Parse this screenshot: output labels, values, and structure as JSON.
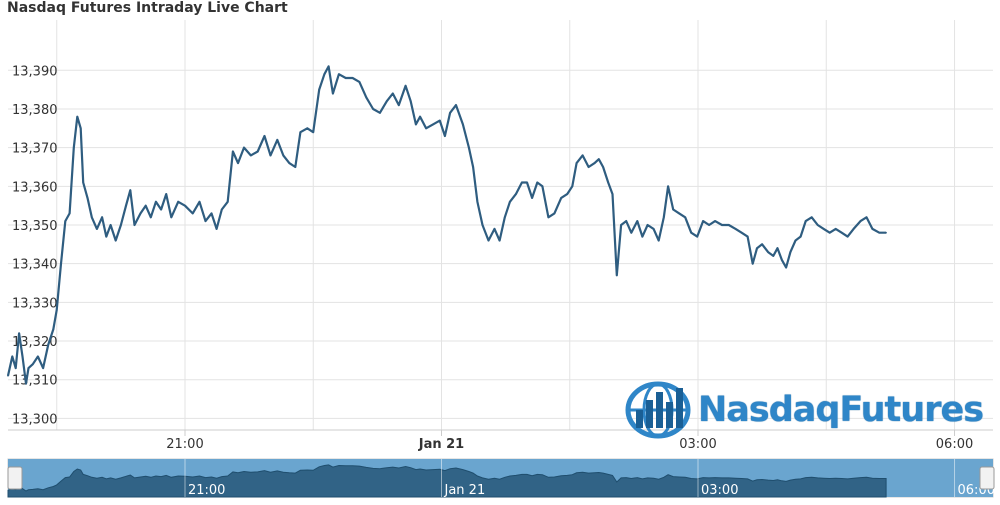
{
  "title": "Nasdaq Futures Intraday Live Chart",
  "brand": {
    "logo_text": "NasdaqFutures"
  },
  "colors": {
    "line": "#2f5d80",
    "grid": "#e3e3e3",
    "navigator_fill": "#3d7da8",
    "navigator_line": "#1f4e6e",
    "logo": "#2f86c8"
  },
  "chart_data": {
    "type": "line",
    "title": "Nasdaq Futures Intraday Live Chart",
    "xlabel": "",
    "ylabel": "",
    "ylim": [
      13297,
      13403
    ],
    "yticks": [
      13390,
      13380,
      13370,
      13360,
      13350,
      13340,
      13330,
      13320,
      13310,
      13300
    ],
    "ytick_labels": [
      "13,390",
      "13,380",
      "13,370",
      "13,360",
      "13,350",
      "13,340",
      "13,330",
      "13,320",
      "13,310",
      "13,300"
    ],
    "xticks": [
      {
        "label": "21:00",
        "hours": 21.0,
        "bold": false
      },
      {
        "label": "Jan 21",
        "hours": 24.0,
        "bold": true
      },
      {
        "label": "03:00",
        "hours": 27.0,
        "bold": false
      },
      {
        "label": "06:00",
        "hours": 30.0,
        "bold": false
      }
    ],
    "grid": true,
    "series": [
      {
        "points": [
          [
            18.93,
            13311
          ],
          [
            18.98,
            13316
          ],
          [
            19.02,
            13313
          ],
          [
            19.06,
            13322
          ],
          [
            19.1,
            13316
          ],
          [
            19.14,
            13309
          ],
          [
            19.17,
            13313
          ],
          [
            19.22,
            13314
          ],
          [
            19.28,
            13316
          ],
          [
            19.34,
            13313
          ],
          [
            19.4,
            13319
          ],
          [
            19.46,
            13323
          ],
          [
            19.5,
            13328
          ],
          [
            19.55,
            13340
          ],
          [
            19.6,
            13351
          ],
          [
            19.65,
            13353
          ],
          [
            19.7,
            13370
          ],
          [
            19.74,
            13378
          ],
          [
            19.78,
            13375
          ],
          [
            19.81,
            13361
          ],
          [
            19.86,
            13357
          ],
          [
            19.91,
            13352
          ],
          [
            19.97,
            13349
          ],
          [
            20.03,
            13352
          ],
          [
            20.08,
            13347
          ],
          [
            20.13,
            13350
          ],
          [
            20.19,
            13346
          ],
          [
            20.25,
            13350
          ],
          [
            20.31,
            13355
          ],
          [
            20.36,
            13359
          ],
          [
            20.41,
            13350
          ],
          [
            20.48,
            13353
          ],
          [
            20.54,
            13355
          ],
          [
            20.6,
            13352
          ],
          [
            20.66,
            13356
          ],
          [
            20.72,
            13354
          ],
          [
            20.78,
            13358
          ],
          [
            20.84,
            13352
          ],
          [
            20.92,
            13356
          ],
          [
            21.0,
            13355
          ],
          [
            21.09,
            13353
          ],
          [
            21.17,
            13356
          ],
          [
            21.24,
            13351
          ],
          [
            21.31,
            13353
          ],
          [
            21.37,
            13349
          ],
          [
            21.43,
            13354
          ],
          [
            21.5,
            13356
          ],
          [
            21.56,
            13369
          ],
          [
            21.62,
            13366
          ],
          [
            21.69,
            13370
          ],
          [
            21.77,
            13368
          ],
          [
            21.85,
            13369
          ],
          [
            21.93,
            13373
          ],
          [
            22.0,
            13368
          ],
          [
            22.08,
            13372
          ],
          [
            22.15,
            13368
          ],
          [
            22.22,
            13366
          ],
          [
            22.29,
            13365
          ],
          [
            22.35,
            13374
          ],
          [
            22.43,
            13375
          ],
          [
            22.5,
            13374
          ],
          [
            22.57,
            13385
          ],
          [
            22.63,
            13389
          ],
          [
            22.68,
            13391
          ],
          [
            22.73,
            13384
          ],
          [
            22.8,
            13389
          ],
          [
            22.88,
            13388
          ],
          [
            22.96,
            13388
          ],
          [
            23.04,
            13387
          ],
          [
            23.12,
            13383
          ],
          [
            23.2,
            13380
          ],
          [
            23.28,
            13379
          ],
          [
            23.36,
            13382
          ],
          [
            23.43,
            13384
          ],
          [
            23.5,
            13381
          ],
          [
            23.58,
            13386
          ],
          [
            23.64,
            13382
          ],
          [
            23.7,
            13376
          ],
          [
            23.75,
            13378
          ],
          [
            23.82,
            13375
          ],
          [
            23.9,
            13376
          ],
          [
            23.98,
            13377
          ],
          [
            24.04,
            13373
          ],
          [
            24.1,
            13379
          ],
          [
            24.17,
            13381
          ],
          [
            24.25,
            13376
          ],
          [
            24.32,
            13370
          ],
          [
            24.37,
            13365
          ],
          [
            24.42,
            13356
          ],
          [
            24.48,
            13350
          ],
          [
            24.55,
            13346
          ],
          [
            24.62,
            13349
          ],
          [
            24.68,
            13346
          ],
          [
            24.74,
            13352
          ],
          [
            24.8,
            13356
          ],
          [
            24.87,
            13358
          ],
          [
            24.94,
            13361
          ],
          [
            25.0,
            13361
          ],
          [
            25.06,
            13357
          ],
          [
            25.12,
            13361
          ],
          [
            25.18,
            13360
          ],
          [
            25.25,
            13352
          ],
          [
            25.32,
            13353
          ],
          [
            25.4,
            13357
          ],
          [
            25.47,
            13358
          ],
          [
            25.53,
            13360
          ],
          [
            25.58,
            13366
          ],
          [
            25.65,
            13368
          ],
          [
            25.72,
            13365
          ],
          [
            25.79,
            13366
          ],
          [
            25.84,
            13367
          ],
          [
            25.89,
            13365
          ],
          [
            25.95,
            13361
          ],
          [
            26.0,
            13358
          ],
          [
            26.05,
            13337
          ],
          [
            26.1,
            13350
          ],
          [
            26.16,
            13351
          ],
          [
            26.22,
            13348
          ],
          [
            26.29,
            13351
          ],
          [
            26.35,
            13347
          ],
          [
            26.41,
            13350
          ],
          [
            26.48,
            13349
          ],
          [
            26.54,
            13346
          ],
          [
            26.6,
            13352
          ],
          [
            26.65,
            13360
          ],
          [
            26.71,
            13354
          ],
          [
            26.78,
            13353
          ],
          [
            26.85,
            13352
          ],
          [
            26.92,
            13348
          ],
          [
            26.99,
            13347
          ],
          [
            27.06,
            13351
          ],
          [
            27.13,
            13350
          ],
          [
            27.2,
            13351
          ],
          [
            27.28,
            13350
          ],
          [
            27.36,
            13350
          ],
          [
            27.44,
            13349
          ],
          [
            27.51,
            13348
          ],
          [
            27.58,
            13347
          ],
          [
            27.64,
            13340
          ],
          [
            27.69,
            13344
          ],
          [
            27.75,
            13345
          ],
          [
            27.82,
            13343
          ],
          [
            27.88,
            13342
          ],
          [
            27.93,
            13344
          ],
          [
            27.98,
            13341
          ],
          [
            28.03,
            13339
          ],
          [
            28.08,
            13343
          ],
          [
            28.14,
            13346
          ],
          [
            28.2,
            13347
          ],
          [
            28.26,
            13351
          ],
          [
            28.33,
            13352
          ],
          [
            28.4,
            13350
          ],
          [
            28.47,
            13349
          ],
          [
            28.54,
            13348
          ],
          [
            28.61,
            13349
          ],
          [
            28.68,
            13348
          ],
          [
            28.75,
            13347
          ],
          [
            28.82,
            13349
          ],
          [
            28.9,
            13351
          ],
          [
            28.97,
            13352
          ],
          [
            29.04,
            13349
          ],
          [
            29.12,
            13348
          ],
          [
            29.2,
            13348
          ]
        ]
      }
    ],
    "x_range_hours": [
      18.93,
      30.45
    ]
  },
  "navigator": {
    "labels": [
      "21:00",
      "Jan 21",
      "03:00",
      "06:00"
    ]
  }
}
